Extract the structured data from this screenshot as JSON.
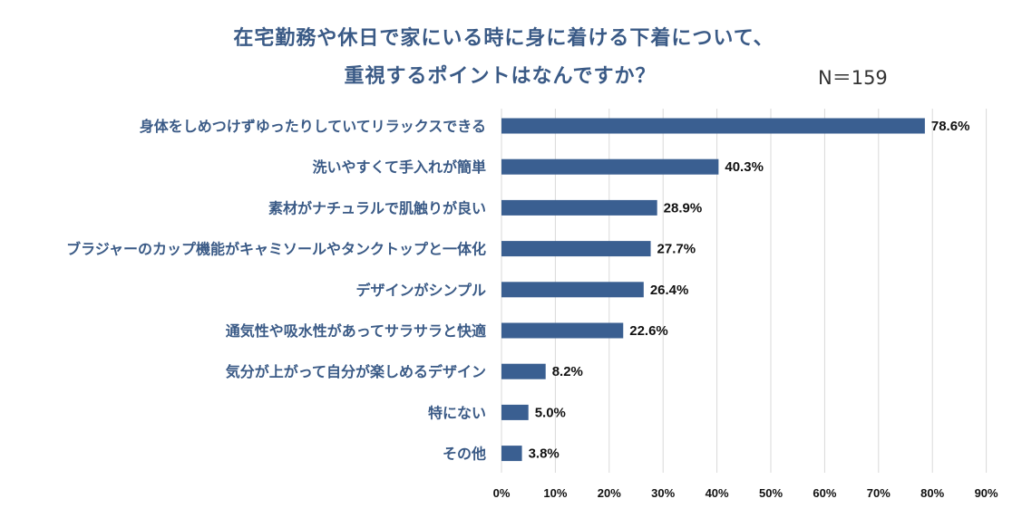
{
  "chart_data": {
    "type": "bar",
    "orientation": "horizontal",
    "title": "在宅勤務や休日で家にいる時に身に着ける下着について、重視するポイントはなんですか？",
    "title_lines": [
      "在宅勤務や休日で家にいる時に身に着ける下着について、",
      "重視するポイントはなんですか？"
    ],
    "n_label": "N＝159",
    "categories": [
      "身体をしめつけずゆったりしていてリラックスできる",
      "洗いやすくて手入れが簡単",
      "素材がナチュラルで肌触りが良い",
      "ブラジャーのカップ機能がキャミソールやタンクトップと一体化",
      "デザインがシンプル",
      "通気性や吸水性があってサラサラと快適",
      "気分が上がって自分が楽しめるデザイン",
      "特にない",
      "その他"
    ],
    "values": [
      78.6,
      40.3,
      28.9,
      27.7,
      26.4,
      22.6,
      8.2,
      5.0,
      3.8
    ],
    "value_labels": [
      "78.6%",
      "40.3%",
      "28.9%",
      "27.7%",
      "26.4%",
      "22.6%",
      "8.2%",
      "5.0%",
      "3.8%"
    ],
    "x_ticks": [
      "0%",
      "10%",
      "20%",
      "30%",
      "40%",
      "50%",
      "60%",
      "70%",
      "80%",
      "90%"
    ],
    "xlim": [
      0,
      90
    ],
    "grid": true,
    "bar_color": "#3a5f91",
    "title_color": "#3a5a86"
  }
}
